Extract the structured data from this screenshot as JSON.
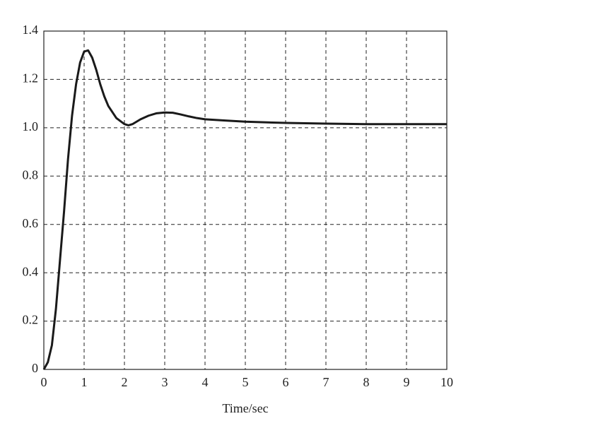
{
  "chart_data": {
    "type": "line",
    "x_label": "Time/sec",
    "x": [
      0,
      0.1,
      0.2,
      0.3,
      0.4,
      0.5,
      0.6,
      0.7,
      0.8,
      0.9,
      1.0,
      1.1,
      1.2,
      1.3,
      1.4,
      1.5,
      1.6,
      1.8,
      2.0,
      2.1,
      2.2,
      2.4,
      2.6,
      2.8,
      3.0,
      3.2,
      3.4,
      3.6,
      3.8,
      4.0,
      4.5,
      5,
      6,
      7,
      8,
      9,
      10
    ],
    "series": [
      {
        "color": "#1a1a1a",
        "values": [
          0,
          0.03,
          0.1,
          0.25,
          0.45,
          0.65,
          0.87,
          1.05,
          1.18,
          1.27,
          1.315,
          1.32,
          1.29,
          1.24,
          1.18,
          1.13,
          1.09,
          1.04,
          1.015,
          1.01,
          1.015,
          1.035,
          1.05,
          1.06,
          1.063,
          1.062,
          1.055,
          1.047,
          1.04,
          1.035,
          1.03,
          1.025,
          1.02,
          1.017,
          1.015,
          1.015,
          1.015
        ]
      }
    ],
    "xlim": [
      0,
      10
    ],
    "xticks": [
      0,
      1,
      2,
      3,
      4,
      5,
      6,
      7,
      8,
      9,
      10
    ],
    "ylim": [
      0,
      1.4
    ],
    "yticks": [
      0,
      0.2,
      0.4,
      0.6,
      0.8,
      {
        "value": 1,
        "label": "1.0"
      },
      1.2,
      1.4
    ],
    "grid": true
  }
}
